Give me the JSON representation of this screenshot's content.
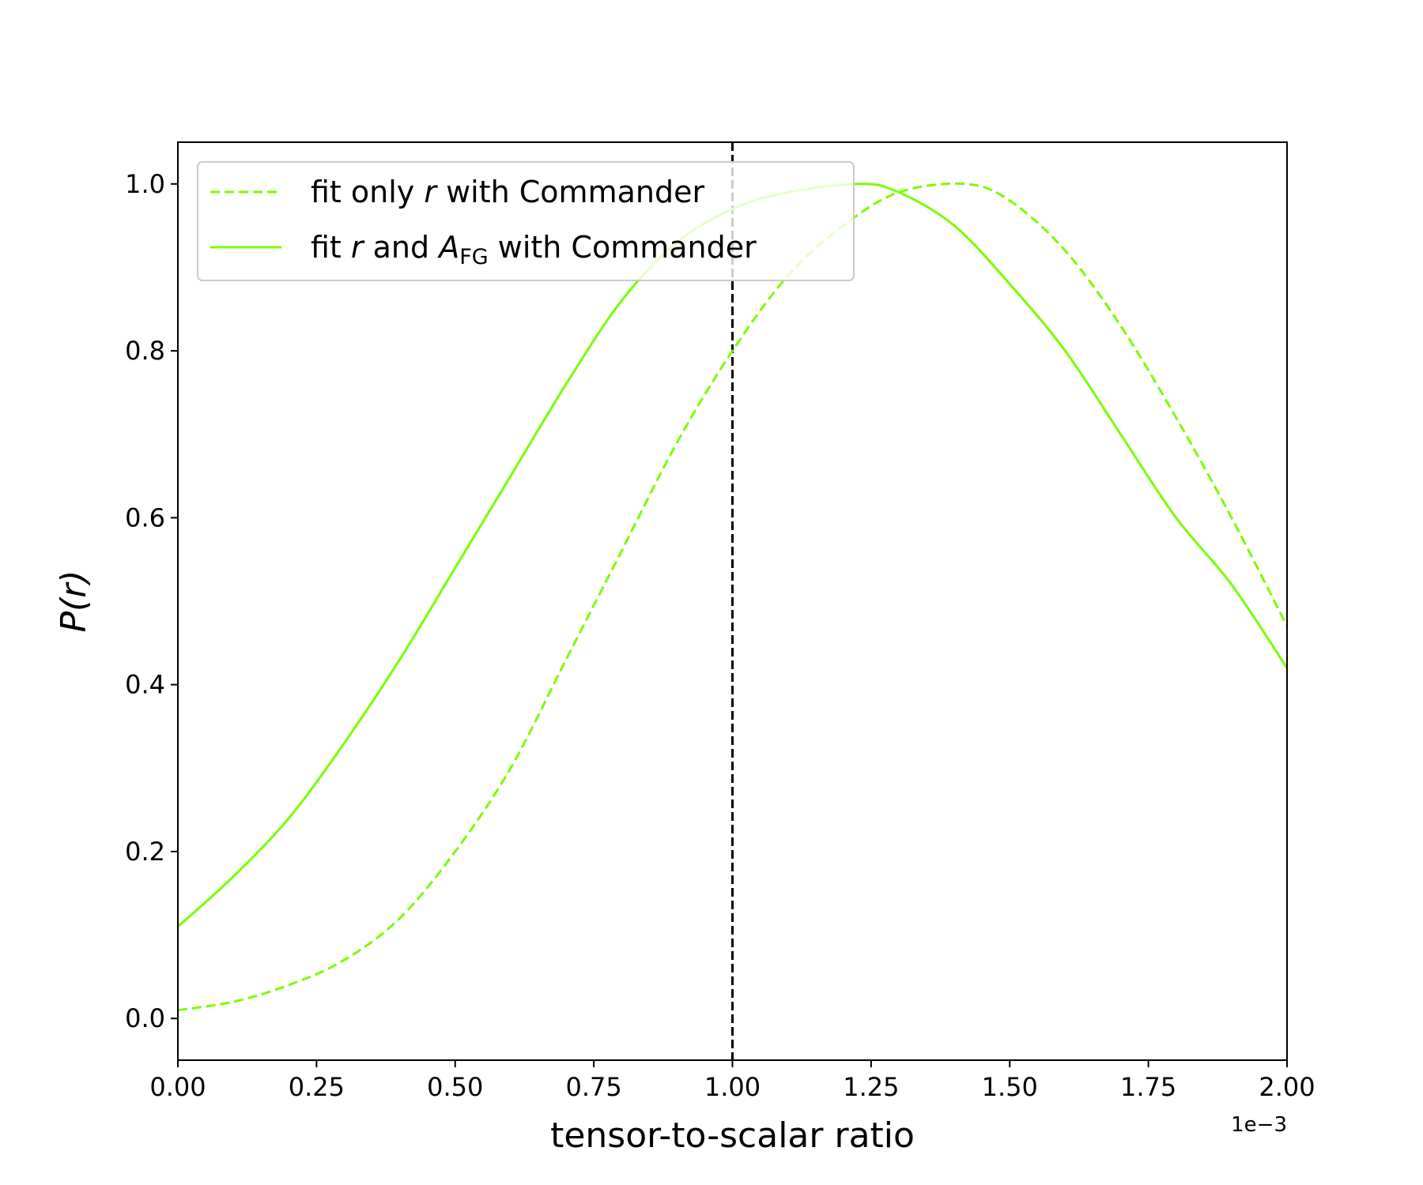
{
  "chart_data": {
    "type": "line",
    "xlabel": "tensor-to-scalar ratio",
    "ylabel": "P(r)",
    "x_offset_label": "1e−3",
    "xlim": [
      0,
      2.0
    ],
    "ylim": [
      -0.05,
      1.05
    ],
    "xticks": [
      0,
      0.25,
      0.5,
      0.75,
      1.0,
      1.25,
      1.5,
      1.75,
      2.0
    ],
    "xtick_labels": [
      "0.00",
      "0.25",
      "0.50",
      "0.75",
      "1.00",
      "1.25",
      "1.50",
      "1.75",
      "2.00"
    ],
    "yticks": [
      0.0,
      0.2,
      0.4,
      0.6,
      0.8,
      1.0
    ],
    "ytick_labels": [
      "0.0",
      "0.2",
      "0.4",
      "0.6",
      "0.8",
      "1.0"
    ],
    "vline": {
      "x": 1.0,
      "color": "#000000",
      "style": "dashed"
    },
    "legend_position": "upper-left",
    "series": [
      {
        "name": "fit only r with Commander",
        "legend": {
          "prefix": "fit only ",
          "var": "r",
          "suffix": " with Commander"
        },
        "color": "#7cfc00",
        "style": "dashed",
        "x": [
          0.0,
          0.1,
          0.2,
          0.3,
          0.4,
          0.5,
          0.6,
          0.7,
          0.8,
          0.9,
          1.0,
          1.1,
          1.2,
          1.3,
          1.42,
          1.5,
          1.6,
          1.7,
          1.8,
          1.9,
          2.0
        ],
        "y": [
          0.01,
          0.02,
          0.04,
          0.07,
          0.12,
          0.2,
          0.3,
          0.43,
          0.56,
          0.69,
          0.8,
          0.89,
          0.95,
          0.99,
          1.0,
          0.98,
          0.92,
          0.83,
          0.72,
          0.6,
          0.47
        ]
      },
      {
        "name": "fit r and A_FG with Commander",
        "legend": {
          "prefix": "fit ",
          "var": "r",
          "middle": " and ",
          "var2": "A",
          "sub": "FG",
          "suffix": " with Commander"
        },
        "color": "#7cfc00",
        "style": "solid",
        "x": [
          0.0,
          0.1,
          0.2,
          0.3,
          0.4,
          0.5,
          0.6,
          0.7,
          0.8,
          0.9,
          1.0,
          1.1,
          1.23,
          1.3,
          1.4,
          1.5,
          1.6,
          1.7,
          1.8,
          1.9,
          2.0
        ],
        "y": [
          0.11,
          0.17,
          0.24,
          0.33,
          0.43,
          0.54,
          0.65,
          0.76,
          0.86,
          0.93,
          0.97,
          0.99,
          1.0,
          0.99,
          0.95,
          0.88,
          0.8,
          0.7,
          0.6,
          0.52,
          0.42
        ]
      }
    ]
  }
}
